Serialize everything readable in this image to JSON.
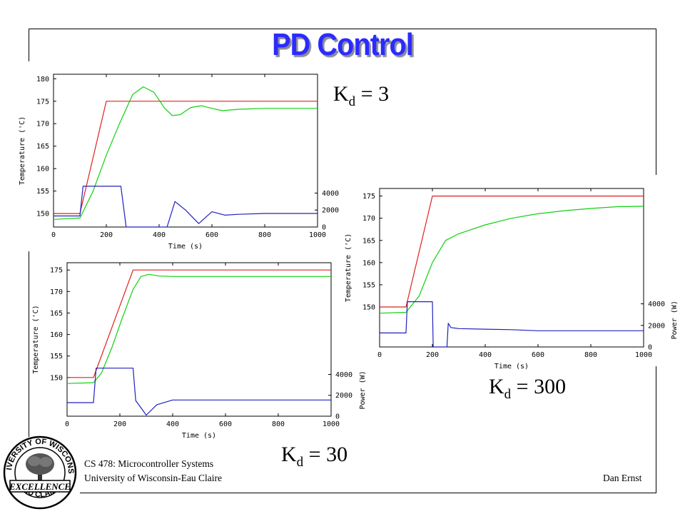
{
  "slide": {
    "title": "PD Control",
    "course": "CS 478: Microcontroller Systems",
    "university": "University of Wisconsin-Eau Claire",
    "author": "Dan Ernst"
  },
  "logo": {
    "icon": "university-seal-icon",
    "top_text": "UNIVERSITY OF WISCONSIN",
    "middle_text": "EXCELLENCE",
    "bottom_text": "EAU CLAIRE"
  },
  "gain_labels": [
    {
      "symbol": "K",
      "subscript": "d",
      "rest": " = 3"
    },
    {
      "symbol": "K",
      "subscript": "d",
      "rest": " = 300"
    },
    {
      "symbol": "K",
      "subscript": "d",
      "rest": " = 30"
    }
  ],
  "colors": {
    "title": "#2b2bff",
    "setpoint": "#e02020",
    "temperature": "#10d010",
    "power": "#2020c0"
  },
  "chart_data": [
    {
      "type": "line",
      "xlabel": "Time (s)",
      "ylabel": "Temperature ('C)",
      "y2label": "",
      "xlim": [
        0,
        1000
      ],
      "ylim": [
        147,
        181
      ],
      "y2lim": [
        0,
        18000
      ],
      "xticks": [
        "0",
        "200",
        "400",
        "600",
        "800",
        "1000"
      ],
      "yticks": [
        "150",
        "155",
        "160",
        "165",
        "170",
        "175",
        "180"
      ],
      "y2ticks": [
        "0",
        "2000",
        "4000"
      ],
      "series": [
        {
          "key": "setpoint",
          "axis": "temp",
          "x": [
            0,
            100,
            200,
            1000
          ],
          "y": [
            150,
            150,
            175,
            175
          ]
        },
        {
          "key": "temperature",
          "axis": "temp",
          "x": [
            0,
            100,
            150,
            200,
            250,
            300,
            340,
            380,
            420,
            450,
            480,
            520,
            560,
            600,
            640,
            700,
            800,
            1000
          ],
          "y": [
            148.7,
            149,
            155,
            163,
            170,
            176.5,
            178.2,
            177,
            173.5,
            171.8,
            172,
            173.6,
            174,
            173.4,
            172.9,
            173.2,
            173.4,
            173.4
          ]
        },
        {
          "key": "power",
          "axis": "power",
          "x": [
            0,
            100,
            112,
            255,
            275,
            430,
            460,
            500,
            550,
            600,
            650,
            700,
            800,
            1000
          ],
          "y": [
            1300,
            1300,
            4800,
            4800,
            0,
            0,
            3000,
            2000,
            400,
            1800,
            1400,
            1500,
            1600,
            1600
          ]
        }
      ]
    },
    {
      "type": "line",
      "xlabel": "Time (s)",
      "ylabel": "Temperature ('C)",
      "y2label": "Power (W)",
      "xlim": [
        0,
        1000
      ],
      "ylim": [
        141,
        176.7
      ],
      "y2lim": [
        0,
        14700
      ],
      "xticks": [
        "0",
        "200",
        "400",
        "600",
        "800",
        "1000"
      ],
      "yticks": [
        "150",
        "155",
        "160",
        "165",
        "170",
        "175"
      ],
      "y2ticks": [
        "0",
        "2000",
        "4000"
      ],
      "series": [
        {
          "key": "setpoint",
          "axis": "temp",
          "x": [
            0,
            100,
            200,
            1000
          ],
          "y": [
            150,
            150,
            175,
            175
          ]
        },
        {
          "key": "temperature",
          "axis": "temp",
          "x": [
            0,
            100,
            150,
            200,
            250,
            300,
            400,
            500,
            600,
            700,
            800,
            900,
            1000
          ],
          "y": [
            148.6,
            148.8,
            152.5,
            160,
            165,
            166.5,
            168.5,
            170,
            171,
            171.7,
            172.2,
            172.6,
            172.7
          ]
        },
        {
          "key": "power",
          "axis": "power",
          "x": [
            0,
            100,
            105,
            200,
            203,
            255,
            260,
            270,
            300,
            400,
            500,
            600,
            1000
          ],
          "y": [
            1300,
            1300,
            4200,
            4200,
            0,
            0,
            2200,
            1800,
            1700,
            1650,
            1600,
            1500,
            1500
          ]
        }
      ]
    },
    {
      "type": "line",
      "xlabel": "Time (s)",
      "ylabel": "Temperature ('C)",
      "y2label": "Power (W)",
      "xlim": [
        0,
        1000
      ],
      "ylim": [
        141,
        176.7
      ],
      "y2lim": [
        0,
        14700
      ],
      "xticks": [
        "0",
        "200",
        "400",
        "600",
        "800",
        "1000"
      ],
      "yticks": [
        "150",
        "155",
        "160",
        "165",
        "170",
        "175"
      ],
      "y2ticks": [
        "0",
        "2000",
        "4000"
      ],
      "series": [
        {
          "key": "setpoint",
          "axis": "temp",
          "x": [
            0,
            100,
            250,
            1000
          ],
          "y": [
            150,
            150,
            175,
            175
          ]
        },
        {
          "key": "temperature",
          "axis": "temp",
          "x": [
            0,
            100,
            130,
            170,
            210,
            250,
            280,
            310,
            350,
            400,
            500,
            1000
          ],
          "y": [
            148.6,
            148.8,
            151,
            157,
            164,
            170.5,
            173.5,
            174,
            173.6,
            173.5,
            173.5,
            173.5
          ]
        },
        {
          "key": "power",
          "axis": "power",
          "x": [
            0,
            100,
            110,
            250,
            260,
            300,
            340,
            400,
            500,
            1000
          ],
          "y": [
            1300,
            1300,
            4600,
            4600,
            1500,
            100,
            1100,
            1550,
            1550,
            1550
          ]
        }
      ]
    }
  ]
}
